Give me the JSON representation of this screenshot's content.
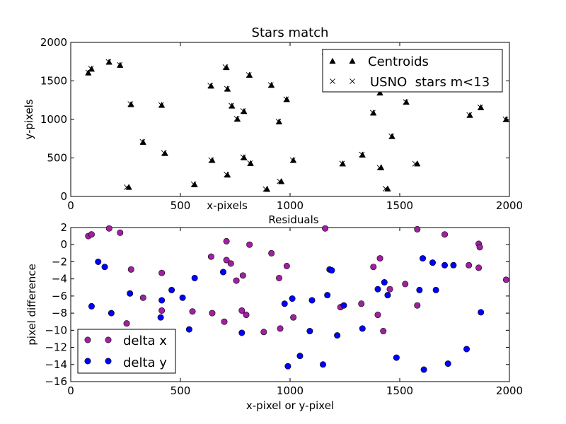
{
  "chart_data": [
    {
      "type": "scatter",
      "title": "Stars match",
      "xlabel": "x-pixels",
      "ylabel": "y-pixels",
      "xlim": [
        0,
        2000
      ],
      "ylim": [
        0,
        2000
      ],
      "xticks": [
        0,
        500,
        1000,
        1500,
        2000
      ],
      "yticks": [
        0,
        500,
        1000,
        1500,
        2000
      ],
      "grid": false,
      "legend_position": "top-right",
      "series": [
        {
          "name": "Centroids",
          "marker": "triangle",
          "color": "#000000",
          "points": [
            [
              80,
              1600
            ],
            [
              95,
              1650
            ],
            [
              175,
              1740
            ],
            [
              225,
              1700
            ],
            [
              275,
              1190
            ],
            [
              330,
              700
            ],
            [
              415,
              1180
            ],
            [
              430,
              555
            ],
            [
              265,
              115
            ],
            [
              565,
              150
            ],
            [
              640,
              1430
            ],
            [
              645,
              465
            ],
            [
              710,
              1670
            ],
            [
              715,
              1390
            ],
            [
              715,
              275
            ],
            [
              735,
              1170
            ],
            [
              760,
              1000
            ],
            [
              790,
              1100
            ],
            [
              790,
              500
            ],
            [
              815,
              1570
            ],
            [
              820,
              425
            ],
            [
              895,
              90
            ],
            [
              915,
              1440
            ],
            [
              950,
              965
            ],
            [
              960,
              190
            ],
            [
              985,
              1255
            ],
            [
              1015,
              465
            ],
            [
              1160,
              1870
            ],
            [
              1240,
              420
            ],
            [
              1330,
              535
            ],
            [
              1380,
              1080
            ],
            [
              1410,
              1340
            ],
            [
              1415,
              370
            ],
            [
              1445,
              95
            ],
            [
              1465,
              775
            ],
            [
              1530,
              1220
            ],
            [
              1580,
              420
            ],
            [
              1820,
              1050
            ],
            [
              1870,
              1150
            ],
            [
              1985,
              995
            ]
          ]
        },
        {
          "name": "USNO  stars m<13",
          "marker": "x",
          "color": "#000000",
          "points": [
            [
              80,
              1610
            ],
            [
              92,
              1660
            ],
            [
              172,
              1748
            ],
            [
              223,
              1710
            ],
            [
              272,
              1200
            ],
            [
              327,
              710
            ],
            [
              412,
              1188
            ],
            [
              425,
              565
            ],
            [
              255,
              120
            ],
            [
              560,
              160
            ],
            [
              636,
              1440
            ],
            [
              640,
              472
            ],
            [
              705,
              1680
            ],
            [
              712,
              1400
            ],
            [
              710,
              285
            ],
            [
              732,
              1180
            ],
            [
              757,
              1010
            ],
            [
              786,
              1110
            ],
            [
              786,
              510
            ],
            [
              812,
              1578
            ],
            [
              817,
              432
            ],
            [
              888,
              96
            ],
            [
              912,
              1448
            ],
            [
              947,
              973
            ],
            [
              952,
              196
            ],
            [
              982,
              1262
            ],
            [
              1012,
              472
            ],
            [
              1157,
              1878
            ],
            [
              1237,
              428
            ],
            [
              1327,
              545
            ],
            [
              1377,
              1088
            ],
            [
              1407,
              1348
            ],
            [
              1408,
              375
            ],
            [
              1435,
              100
            ],
            [
              1462,
              782
            ],
            [
              1527,
              1228
            ],
            [
              1570,
              425
            ],
            [
              1817,
              1058
            ],
            [
              1867,
              1158
            ],
            [
              1982,
              1002
            ]
          ]
        }
      ]
    },
    {
      "type": "scatter",
      "title": "Residuals",
      "xlabel": "x-pixel or y-pixel",
      "ylabel": "pixel difference",
      "xlim": [
        0,
        2000
      ],
      "ylim": [
        -16,
        2
      ],
      "xticks": [
        0,
        500,
        1000,
        1500,
        2000
      ],
      "yticks": [
        2,
        0,
        -2,
        -4,
        -6,
        -8,
        -10,
        -12,
        -14,
        -16
      ],
      "grid": false,
      "legend_position": "bottom-left",
      "series": [
        {
          "name": "delta x",
          "marker": "circle",
          "color": "#a020a0",
          "points": [
            [
              80,
              1.0
            ],
            [
              95,
              1.2
            ],
            [
              175,
              1.9
            ],
            [
              225,
              1.4
            ],
            [
              255,
              -9.2
            ],
            [
              275,
              -2.9
            ],
            [
              330,
              -6.2
            ],
            [
              415,
              -3.3
            ],
            [
              415,
              -7.7
            ],
            [
              555,
              -7.8
            ],
            [
              640,
              -1.4
            ],
            [
              645,
              -8.0
            ],
            [
              700,
              -9.0
            ],
            [
              710,
              0.4
            ],
            [
              710,
              -1.8
            ],
            [
              730,
              -2.2
            ],
            [
              755,
              -4.2
            ],
            [
              780,
              -7.7
            ],
            [
              785,
              -3.6
            ],
            [
              800,
              -8.2
            ],
            [
              815,
              0.0
            ],
            [
              880,
              -10.2
            ],
            [
              915,
              -1.0
            ],
            [
              950,
              -3.9
            ],
            [
              955,
              -9.8
            ],
            [
              985,
              -2.5
            ],
            [
              1015,
              -8.5
            ],
            [
              1160,
              1.9
            ],
            [
              1230,
              -7.3
            ],
            [
              1325,
              -6.9
            ],
            [
              1380,
              -2.6
            ],
            [
              1400,
              -8.2
            ],
            [
              1410,
              -1.6
            ],
            [
              1425,
              -10.1
            ],
            [
              1455,
              -5.2
            ],
            [
              1525,
              -4.6
            ],
            [
              1580,
              1.8
            ],
            [
              1580,
              -7.1
            ],
            [
              1705,
              1.2
            ],
            [
              1815,
              -2.4
            ],
            [
              1860,
              0.1
            ],
            [
              1860,
              -2.7
            ],
            [
              1865,
              -0.3
            ],
            [
              1985,
              -4.1
            ]
          ]
        },
        {
          "name": "delta y",
          "marker": "circle",
          "color": "#0000ff",
          "points": [
            [
              95,
              -7.2
            ],
            [
              125,
              -2.0
            ],
            [
              155,
              -2.6
            ],
            [
              185,
              -8.0
            ],
            [
              270,
              -5.7
            ],
            [
              410,
              -8.5
            ],
            [
              415,
              -6.5
            ],
            [
              460,
              -5.3
            ],
            [
              510,
              -6.2
            ],
            [
              540,
              -9.9
            ],
            [
              565,
              -3.9
            ],
            [
              695,
              -3.2
            ],
            [
              780,
              -10.3
            ],
            [
              975,
              -6.9
            ],
            [
              990,
              -14.2
            ],
            [
              1010,
              -6.3
            ],
            [
              1045,
              -13.0
            ],
            [
              1090,
              -10.1
            ],
            [
              1100,
              -6.5
            ],
            [
              1150,
              -14.0
            ],
            [
              1170,
              -5.9
            ],
            [
              1180,
              -2.9
            ],
            [
              1190,
              -3.0
            ],
            [
              1215,
              -10.6
            ],
            [
              1245,
              -7.1
            ],
            [
              1330,
              -9.8
            ],
            [
              1400,
              -5.2
            ],
            [
              1430,
              -4.4
            ],
            [
              1445,
              -5.9
            ],
            [
              1485,
              -13.2
            ],
            [
              1590,
              -5.3
            ],
            [
              1605,
              -1.6
            ],
            [
              1610,
              -14.6
            ],
            [
              1650,
              -2.1
            ],
            [
              1665,
              -5.3
            ],
            [
              1705,
              -2.4
            ],
            [
              1720,
              -13.9
            ],
            [
              1745,
              -2.4
            ],
            [
              1805,
              -12.2
            ],
            [
              1870,
              -7.9
            ]
          ]
        }
      ]
    }
  ]
}
